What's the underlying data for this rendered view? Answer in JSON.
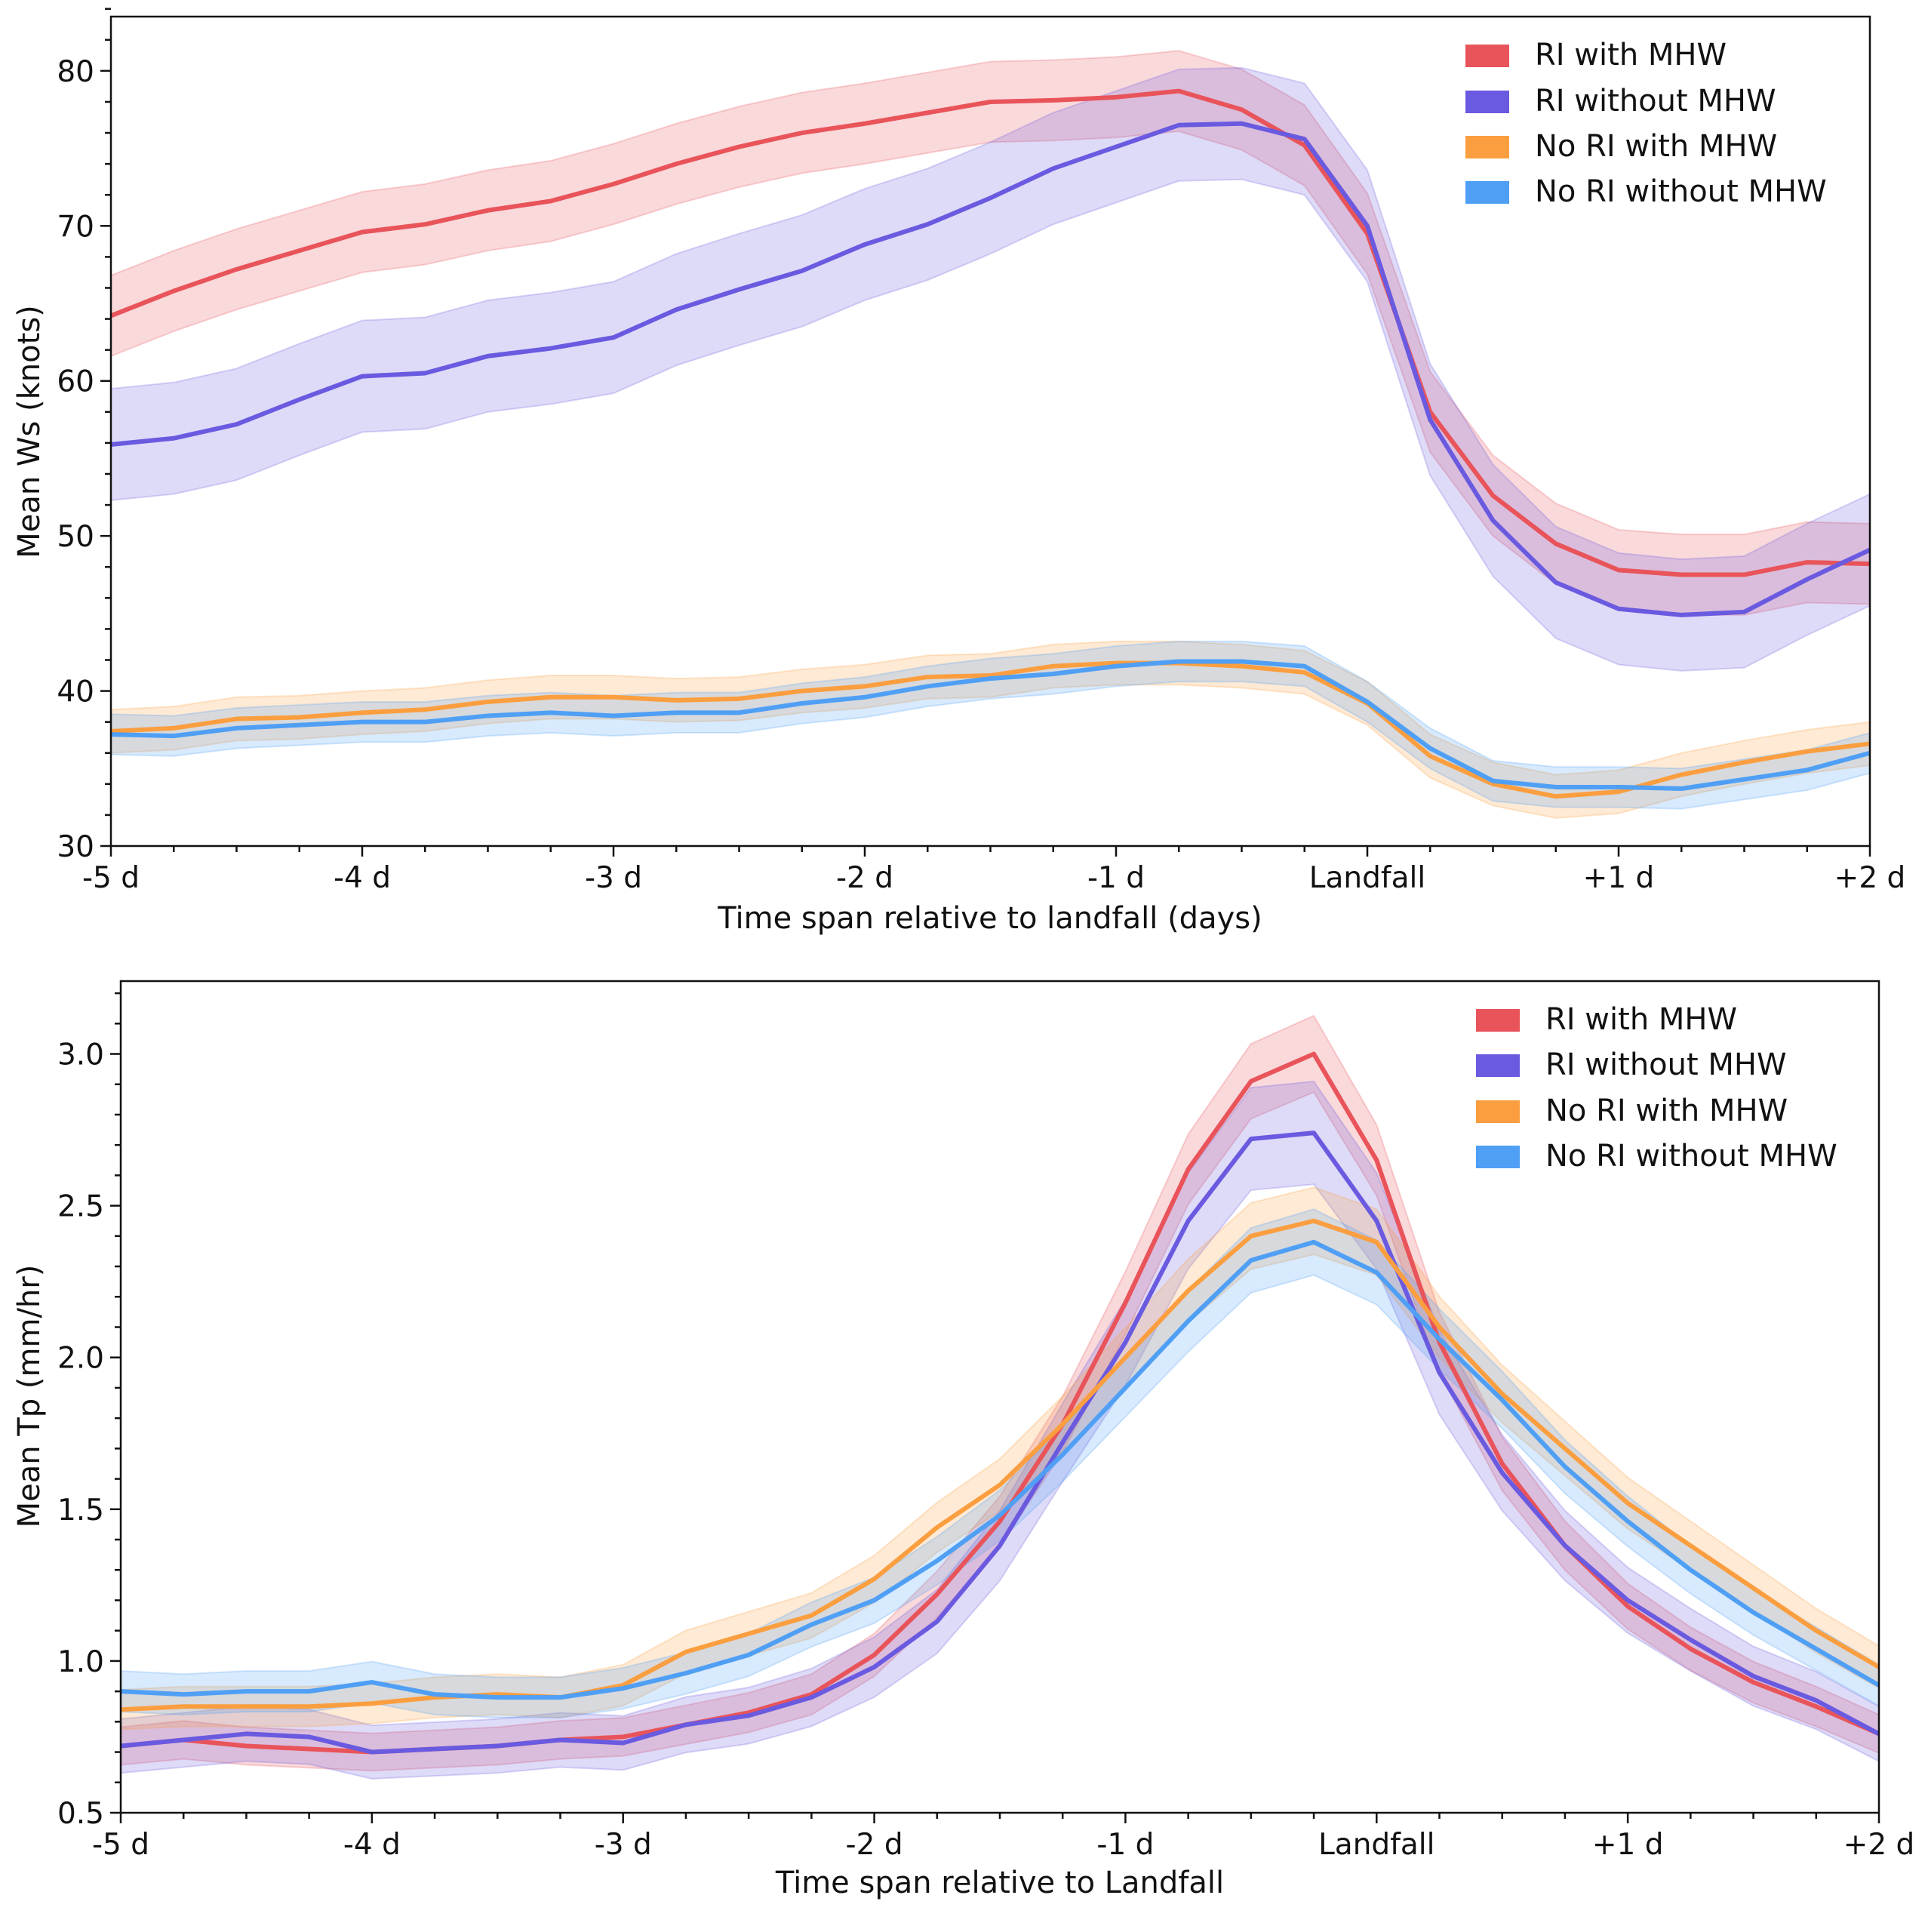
{
  "colors": {
    "ri_mhw": "#e8545a",
    "ri_no_mhw": "#6a5ae0",
    "nori_mhw": "#fb9e3f",
    "nori_no_mhw": "#4f9ff5"
  },
  "chart_data": [
    {
      "type": "line",
      "xlabel": "Time span relative to landfall (days)",
      "ylabel": "Mean Ws (knots)",
      "xlim": [
        -5,
        2
      ],
      "ylim": [
        30,
        83.5
      ],
      "x_ticks": [
        -5,
        -4,
        -3,
        -2,
        -1,
        0,
        1,
        2
      ],
      "x_tick_labels": [
        "-5 d",
        "-4 d",
        "-3 d",
        "-2 d",
        "-1 d",
        "Landfall",
        "+1 d",
        "+2 d"
      ],
      "y_ticks": [
        30,
        40,
        50,
        60,
        70,
        80
      ],
      "y_tick_labels": [
        "30",
        "40",
        "50",
        "60",
        "70",
        "80"
      ],
      "legend_position": "top-right",
      "grid": false,
      "shaded_band": "spread around mean",
      "x": [
        -5,
        -4.75,
        -4.5,
        -4.25,
        -4,
        -3.75,
        -3.5,
        -3.25,
        -3,
        -2.75,
        -2.5,
        -2.25,
        -2,
        -1.75,
        -1.5,
        -1.25,
        -1,
        -0.75,
        -0.5,
        -0.25,
        0,
        0.25,
        0.5,
        0.75,
        1,
        1.25,
        1.5,
        1.75,
        2
      ],
      "series": [
        {
          "name": "RI with MHW",
          "color_key": "ri_mhw",
          "band": 2.6,
          "values": [
            64.2,
            65.8,
            67.2,
            68.4,
            69.6,
            70.1,
            71.0,
            71.6,
            72.7,
            74.0,
            75.1,
            76.0,
            76.6,
            77.3,
            78.0,
            78.1,
            78.3,
            78.7,
            77.5,
            75.2,
            69.5,
            58.0,
            52.6,
            49.5,
            47.8,
            47.5,
            47.5,
            48.3,
            48.2
          ]
        },
        {
          "name": "RI without MHW",
          "color_key": "ri_no_mhw",
          "band": 3.6,
          "values": [
            55.9,
            56.3,
            57.2,
            58.8,
            60.3,
            60.5,
            61.6,
            62.1,
            62.8,
            64.6,
            65.9,
            67.1,
            68.8,
            70.1,
            71.8,
            73.7,
            75.1,
            76.5,
            76.6,
            75.6,
            70.0,
            57.5,
            51.0,
            47.0,
            45.3,
            44.9,
            45.1,
            47.2,
            49.1
          ]
        },
        {
          "name": "No RI with MHW",
          "color_key": "nori_mhw",
          "band": 1.4,
          "values": [
            37.4,
            37.6,
            38.2,
            38.3,
            38.6,
            38.8,
            39.3,
            39.6,
            39.6,
            39.4,
            39.5,
            40.0,
            40.3,
            40.9,
            41.0,
            41.6,
            41.8,
            41.8,
            41.6,
            41.2,
            39.2,
            35.8,
            34.0,
            33.2,
            33.5,
            34.6,
            35.4,
            36.1,
            36.6
          ]
        },
        {
          "name": "No RI without MHW",
          "color_key": "nori_no_mhw",
          "band": 1.3,
          "values": [
            37.2,
            37.1,
            37.6,
            37.8,
            38.0,
            38.0,
            38.4,
            38.6,
            38.4,
            38.6,
            38.6,
            39.2,
            39.6,
            40.3,
            40.8,
            41.1,
            41.6,
            41.9,
            41.9,
            41.6,
            39.3,
            36.3,
            34.2,
            33.8,
            33.8,
            33.7,
            34.3,
            34.9,
            36.0
          ]
        }
      ]
    },
    {
      "type": "line",
      "xlabel": "Time span relative to Landfall",
      "ylabel": "Mean Tp (mm/hr)",
      "xlim": [
        -5,
        2
      ],
      "ylim": [
        0.5,
        3.24
      ],
      "x_ticks": [
        -5,
        -4,
        -3,
        -2,
        -1,
        0,
        1,
        2
      ],
      "x_tick_labels": [
        "-5 d",
        "-4 d",
        "-3 d",
        "-2 d",
        "-1 d",
        "Landfall",
        "+1 d",
        "+2 d"
      ],
      "y_ticks": [
        0.5,
        1.0,
        1.5,
        2.0,
        2.5,
        3.0
      ],
      "y_tick_labels": [
        "0.5",
        "1.0",
        "1.5",
        "2.0",
        "2.5",
        "3.0"
      ],
      "legend_position": "top-right",
      "grid": false,
      "shaded_band": "spread around mean",
      "x": [
        -5,
        -4.75,
        -4.5,
        -4.25,
        -4,
        -3.75,
        -3.5,
        -3.25,
        -3,
        -2.75,
        -2.5,
        -2.25,
        -2,
        -1.75,
        -1.5,
        -1.25,
        -1,
        -0.75,
        -0.5,
        -0.25,
        0,
        0.25,
        0.5,
        0.75,
        1,
        1.25,
        1.5,
        1.75,
        2
      ],
      "series": [
        {
          "name": "RI with MHW",
          "color_key": "ri_mhw",
          "band": 0.07,
          "values": [
            0.72,
            0.74,
            0.72,
            0.71,
            0.7,
            0.71,
            0.72,
            0.74,
            0.75,
            0.79,
            0.83,
            0.89,
            1.02,
            1.22,
            1.46,
            1.78,
            2.18,
            2.62,
            2.91,
            3.0,
            2.65,
            2.05,
            1.65,
            1.38,
            1.18,
            1.04,
            0.93,
            0.85,
            0.76
          ]
        },
        {
          "name": "RI without MHW",
          "color_key": "ri_no_mhw",
          "band": 0.1,
          "values": [
            0.72,
            0.74,
            0.76,
            0.75,
            0.7,
            0.71,
            0.72,
            0.74,
            0.73,
            0.79,
            0.82,
            0.88,
            0.98,
            1.13,
            1.38,
            1.72,
            2.05,
            2.45,
            2.72,
            2.74,
            2.45,
            1.95,
            1.62,
            1.38,
            1.2,
            1.07,
            0.95,
            0.87,
            0.76
          ]
        },
        {
          "name": "No RI with MHW",
          "color_key": "nori_mhw",
          "band": 0.07,
          "values": [
            0.84,
            0.85,
            0.85,
            0.85,
            0.86,
            0.88,
            0.89,
            0.88,
            0.92,
            1.03,
            1.09,
            1.15,
            1.27,
            1.44,
            1.58,
            1.78,
            2.0,
            2.22,
            2.4,
            2.45,
            2.38,
            2.1,
            1.88,
            1.7,
            1.52,
            1.38,
            1.24,
            1.1,
            0.98
          ]
        },
        {
          "name": "No RI without MHW",
          "color_key": "nori_no_mhw",
          "band": 0.07,
          "values": [
            0.9,
            0.89,
            0.9,
            0.9,
            0.93,
            0.89,
            0.88,
            0.88,
            0.91,
            0.96,
            1.02,
            1.12,
            1.2,
            1.33,
            1.48,
            1.68,
            1.9,
            2.12,
            2.32,
            2.38,
            2.28,
            2.06,
            1.86,
            1.64,
            1.46,
            1.3,
            1.16,
            1.04,
            0.92
          ]
        }
      ]
    }
  ]
}
